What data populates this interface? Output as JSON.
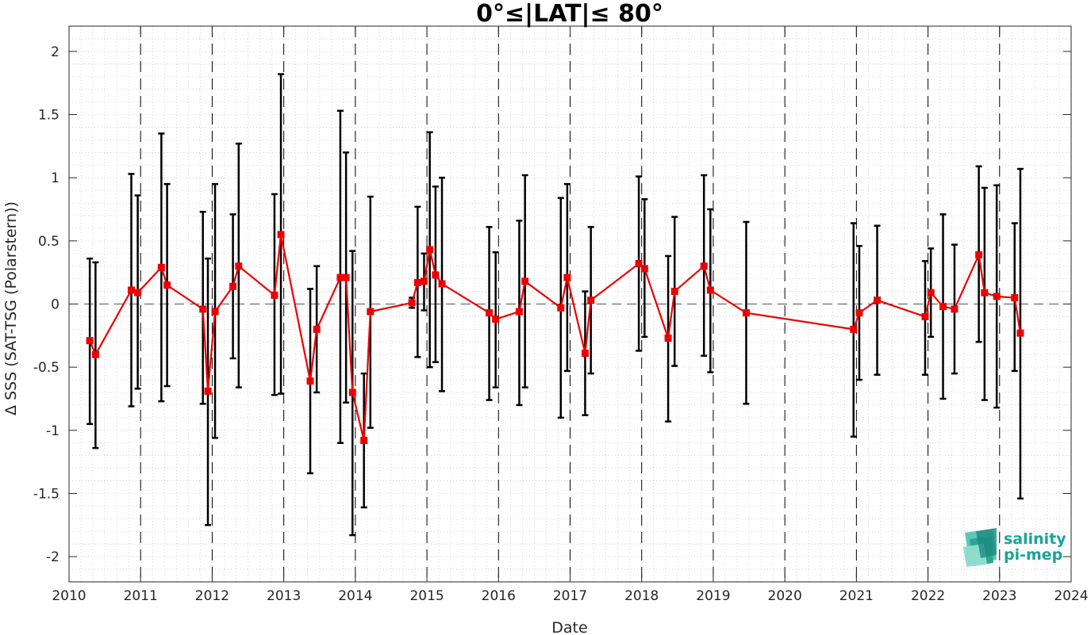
{
  "chart_data": {
    "type": "line",
    "title": "0°≤|LAT|≤ 80°",
    "xlabel": "Date",
    "ylabel": "Δ SSS (SAT-TSG (Polarstern))",
    "xlim": [
      2010,
      2024
    ],
    "ylim": [
      -2.2,
      2.2
    ],
    "x_ticks": [
      "2010",
      "2011",
      "2012",
      "2013",
      "2014",
      "2015",
      "2016",
      "2017",
      "2018",
      "2019",
      "2020",
      "2021",
      "2022",
      "2023",
      "2024"
    ],
    "y_ticks": [
      "-2",
      "-1.5",
      "-1",
      "-0.5",
      "0",
      "0.5",
      "1",
      "1.5",
      "2"
    ],
    "y_tick_values": [
      -2,
      -1.5,
      -1,
      -0.5,
      0,
      0.5,
      1,
      1.5,
      2
    ],
    "year_divider_lines": [
      "2011",
      "2012",
      "2013",
      "2014",
      "2015",
      "2016",
      "2017",
      "2018",
      "2019",
      "2020",
      "2021",
      "2022",
      "2023"
    ],
    "zero_reference_line": 0,
    "grid": "dotted minor grid",
    "line_color": "#ee0000",
    "errorbar_color": "#000000",
    "series": [
      {
        "x": [
          2010.29,
          2010.37,
          2010.87,
          2010.96,
          2011.29,
          2011.37,
          2011.87,
          2011.94,
          2012.04,
          2012.29,
          2012.37,
          2012.87,
          2012.96,
          2013.37,
          2013.46,
          2013.79,
          2013.87,
          2013.96,
          2014.12,
          2014.21,
          2014.79,
          2014.87,
          2014.96,
          2015.04,
          2015.12,
          2015.21,
          2015.87,
          2015.96,
          2016.29,
          2016.37,
          2016.87,
          2016.96,
          2017.21,
          2017.29,
          2017.96,
          2018.04,
          2018.37,
          2018.46,
          2018.87,
          2018.96,
          2019.46,
          2020.96,
          2021.04,
          2021.29,
          2021.96,
          2022.04,
          2022.21,
          2022.37,
          2022.71,
          2022.79,
          2022.96,
          2023.21,
          2023.29
        ],
        "y": [
          -0.29,
          -0.4,
          0.11,
          0.09,
          0.29,
          0.15,
          -0.04,
          -0.69,
          -0.06,
          0.14,
          0.3,
          0.07,
          0.55,
          -0.61,
          -0.2,
          0.21,
          0.21,
          -0.7,
          -1.08,
          -0.06,
          0.01,
          0.17,
          0.18,
          0.43,
          0.23,
          0.16,
          -0.07,
          -0.12,
          -0.06,
          0.18,
          -0.03,
          0.21,
          -0.39,
          0.03,
          0.32,
          0.28,
          -0.27,
          0.1,
          0.3,
          0.11,
          -0.07,
          -0.2,
          -0.07,
          0.03,
          -0.1,
          0.09,
          -0.02,
          -0.04,
          0.39,
          0.09,
          0.06,
          0.05,
          -0.23
        ],
        "err_low": [
          -0.95,
          -1.14,
          -0.81,
          -0.67,
          -0.77,
          -0.65,
          -0.79,
          -1.75,
          -1.06,
          -0.43,
          -0.66,
          -0.72,
          -0.71,
          -1.34,
          -0.7,
          -1.1,
          -0.78,
          -1.83,
          -1.61,
          -0.98,
          -0.03,
          -0.42,
          -0.05,
          -0.5,
          -0.46,
          -0.69,
          -0.76,
          -0.66,
          -0.8,
          -0.66,
          -0.9,
          -0.53,
          -0.88,
          -0.55,
          -0.37,
          -0.26,
          -0.93,
          -0.49,
          -0.41,
          -0.54,
          -0.79,
          -1.05,
          -0.6,
          -0.56,
          -0.56,
          -0.26,
          -0.75,
          -0.55,
          -0.3,
          -0.76,
          -0.82,
          -0.53,
          -1.54
        ],
        "err_high": [
          0.36,
          0.33,
          1.03,
          0.86,
          1.35,
          0.95,
          0.73,
          0.36,
          0.95,
          0.71,
          1.27,
          0.87,
          1.82,
          0.12,
          0.3,
          1.53,
          1.2,
          0.42,
          -0.55,
          0.85,
          0.05,
          0.77,
          0.4,
          1.36,
          0.93,
          1.0,
          0.61,
          0.41,
          0.66,
          1.02,
          0.84,
          0.95,
          0.1,
          0.61,
          1.01,
          0.83,
          0.38,
          0.69,
          1.02,
          0.75,
          0.65,
          0.64,
          0.46,
          0.62,
          0.34,
          0.44,
          0.71,
          0.47,
          1.09,
          0.92,
          0.94,
          0.64,
          1.07
        ]
      }
    ]
  },
  "logo": {
    "line1": "salinity",
    "line2": "pi-mep",
    "color": "#1aa39a"
  }
}
